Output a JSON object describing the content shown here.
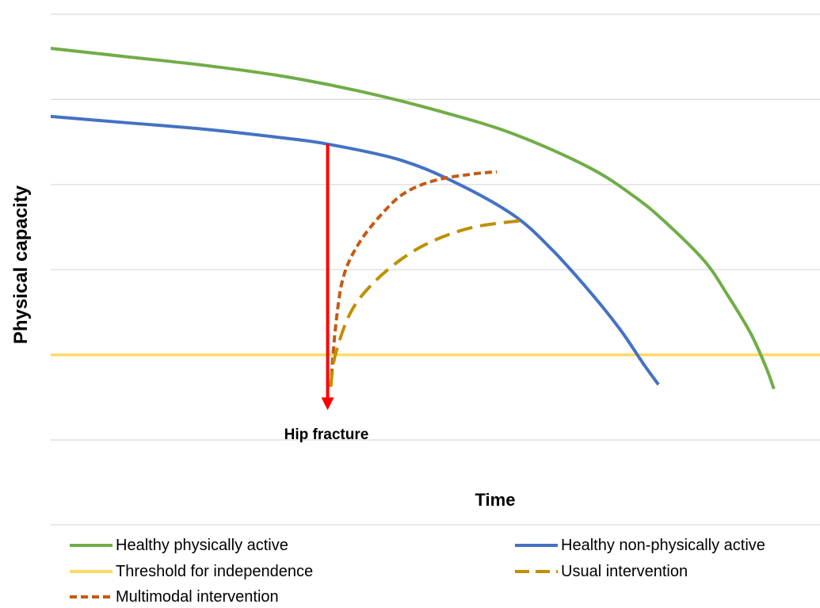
{
  "chart_data": {
    "type": "line",
    "xlabel": "Time",
    "ylabel": "Physical capacity",
    "x_range": [
      0,
      100
    ],
    "ylim": [
      0,
      100
    ],
    "grid": true,
    "legend_placement": "bottom",
    "series": [
      {
        "name": "Healthy physically active",
        "color": "#70ad47",
        "style": "solid",
        "points": [
          [
            0,
            92
          ],
          [
            10,
            90
          ],
          [
            20,
            88
          ],
          [
            30,
            85.5
          ],
          [
            40,
            82
          ],
          [
            50,
            77.5
          ],
          [
            60,
            72
          ],
          [
            70,
            64
          ],
          [
            76,
            57
          ],
          [
            80,
            51
          ],
          [
            85,
            42
          ],
          [
            88,
            34
          ],
          [
            91,
            25
          ],
          [
            93,
            17
          ],
          [
            94,
            12
          ]
        ]
      },
      {
        "name": "Healthy non-physically active",
        "color": "#4472c4",
        "style": "solid",
        "points": [
          [
            0,
            76
          ],
          [
            10,
            74.5
          ],
          [
            20,
            73
          ],
          [
            30,
            71
          ],
          [
            36,
            69.5
          ],
          [
            45,
            66
          ],
          [
            52,
            61
          ],
          [
            60,
            53
          ],
          [
            65,
            45
          ],
          [
            70,
            35
          ],
          [
            74,
            26
          ],
          [
            77,
            18
          ],
          [
            79,
            13
          ]
        ]
      },
      {
        "name": "Threshold for independence",
        "color": "#ffd966",
        "style": "solid",
        "points": [
          [
            0,
            20
          ],
          [
            100,
            20
          ]
        ]
      },
      {
        "name": "Usual intervention",
        "color": "#bf9000",
        "style": "dashed",
        "points": [
          [
            36.4,
            12.5
          ],
          [
            37,
            20
          ],
          [
            39,
            30
          ],
          [
            42,
            37
          ],
          [
            46,
            43
          ],
          [
            50,
            47
          ],
          [
            55,
            50
          ],
          [
            61,
            51.5
          ]
        ]
      },
      {
        "name": "Multimodal intervention",
        "color": "#c55a11",
        "style": "dashed",
        "points": [
          [
            36.4,
            12.5
          ],
          [
            37,
            26
          ],
          [
            38,
            38
          ],
          [
            40,
            46
          ],
          [
            43,
            53
          ],
          [
            46,
            58
          ],
          [
            50,
            61
          ],
          [
            55,
            62.5
          ],
          [
            58,
            63
          ]
        ]
      }
    ],
    "annotations": [
      {
        "text": "Hip fracture",
        "x": 36,
        "y_from": 69.5,
        "y_to": 7,
        "color": "#ff0000"
      }
    ]
  }
}
